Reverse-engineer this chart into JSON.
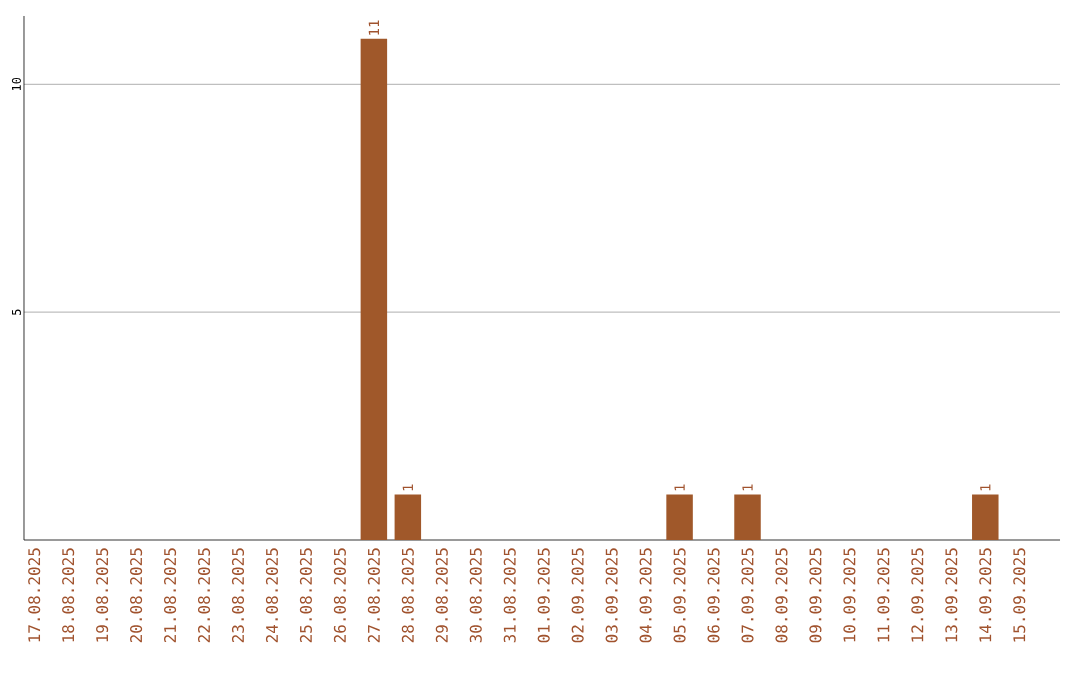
{
  "chart_data": {
    "type": "bar",
    "categories": [
      "17.08.2025",
      "18.08.2025",
      "19.08.2025",
      "20.08.2025",
      "21.08.2025",
      "22.08.2025",
      "23.08.2025",
      "24.08.2025",
      "25.08.2025",
      "26.08.2025",
      "27.08.2025",
      "28.08.2025",
      "29.08.2025",
      "30.08.2025",
      "31.08.2025",
      "01.09.2025",
      "02.09.2025",
      "03.09.2025",
      "04.09.2025",
      "05.09.2025",
      "06.09.2025",
      "07.09.2025",
      "08.09.2025",
      "09.09.2025",
      "10.09.2025",
      "11.09.2025",
      "12.09.2025",
      "13.09.2025",
      "14.09.2025",
      "15.09.2025"
    ],
    "values": [
      0,
      0,
      0,
      0,
      0,
      0,
      0,
      0,
      0,
      0,
      11,
      1,
      0,
      0,
      0,
      0,
      0,
      0,
      0,
      1,
      0,
      1,
      0,
      0,
      0,
      0,
      0,
      0,
      1,
      0
    ],
    "color": "#a0582a",
    "ylim": [
      0,
      11.5
    ],
    "yticks": [
      5,
      10
    ],
    "grid": "y",
    "value_labels": [
      null,
      null,
      null,
      null,
      null,
      null,
      null,
      null,
      null,
      null,
      "11",
      "1",
      null,
      null,
      null,
      null,
      null,
      null,
      null,
      "1",
      null,
      "1",
      null,
      null,
      null,
      null,
      null,
      null,
      "1",
      null
    ]
  }
}
